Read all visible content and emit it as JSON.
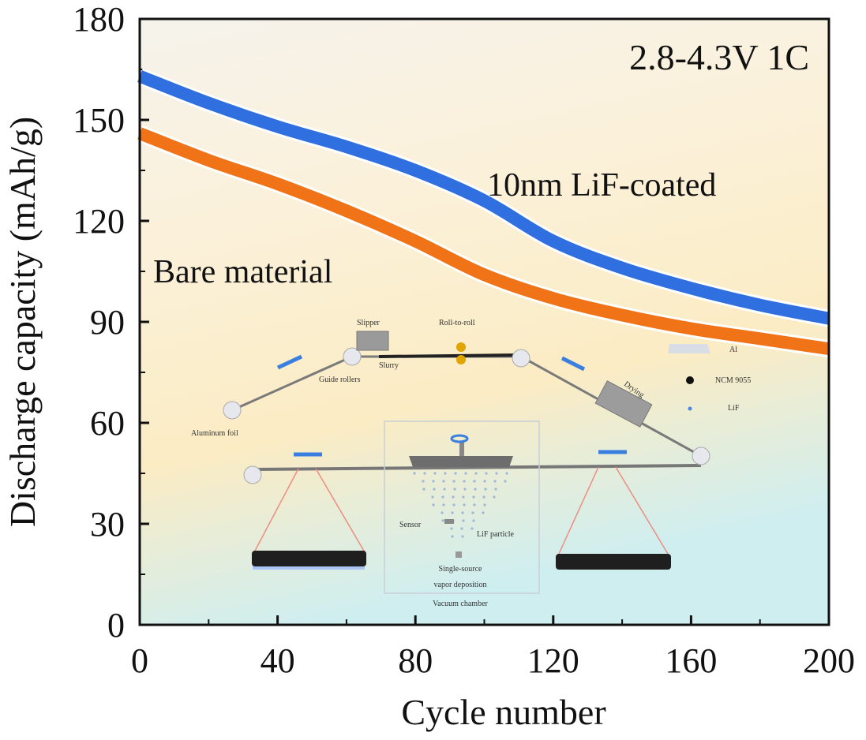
{
  "chart_data": {
    "type": "line",
    "title": "",
    "xlabel": "Cycle number",
    "ylabel": "Discharge capacity (mAh/g)",
    "xlim": [
      0,
      200
    ],
    "ylim": [
      0,
      180
    ],
    "xticks": [
      0,
      40,
      80,
      120,
      160,
      200
    ],
    "yticks": [
      0,
      30,
      60,
      90,
      120,
      150,
      180
    ],
    "grid": false,
    "x": [
      0,
      20,
      40,
      60,
      80,
      100,
      120,
      140,
      160,
      180,
      200
    ],
    "series": [
      {
        "name": "10nm LiF-coated",
        "color": "#2f6fe0",
        "values": [
          163,
          155,
          148,
          142,
          135,
          126,
          114,
          106,
          100,
          95,
          91
        ]
      },
      {
        "name": "Bare material",
        "color": "#f07417",
        "values": [
          146,
          138,
          131,
          123,
          114,
          104,
          97,
          92,
          88,
          85,
          82
        ]
      }
    ],
    "annotations": [
      {
        "text": "2.8-4.3V 1C",
        "position": "top-right"
      },
      {
        "text": "10nm LiF-coated",
        "position": "above blue curve"
      },
      {
        "text": "Bare material",
        "position": "left, below orange curve"
      }
    ]
  },
  "inset": {
    "labels": {
      "slipper": "Slipper",
      "roll_to_roll": "Roll-to-roll",
      "slurry": "Slurry",
      "guide_rollers": "Guide rollers",
      "aluminum_foil": "Aluminum foil",
      "drying": "Drying",
      "sensor": "Sensor",
      "lif_particle": "LiF particle",
      "source_line1": "Single-source",
      "source_line2": "vapor deposition",
      "vacuum_chamber": "Vacuum chamber"
    },
    "legend": [
      {
        "label": "Al",
        "swatch": "trapezoid",
        "color": "#d9dde6"
      },
      {
        "label": "NCM 9055",
        "swatch": "dot",
        "color": "#111111"
      },
      {
        "label": "LiF",
        "swatch": "dot",
        "color": "#4a86e8"
      }
    ]
  }
}
